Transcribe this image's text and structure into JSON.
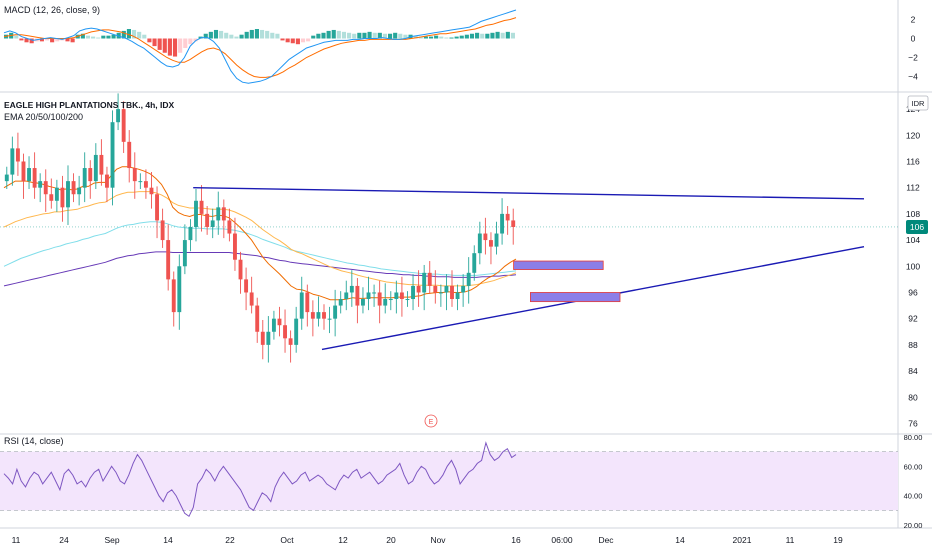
{
  "chart_data": [
    {
      "type": "histogram",
      "title": "MACD (12, 26, close, 9)",
      "y_ticks": [
        "2",
        "0",
        "−2",
        "−4"
      ],
      "y_tick_values": [
        2,
        0,
        -2,
        -4
      ],
      "ylim": [
        -5,
        3
      ],
      "histogram": [
        0.4,
        0.6,
        0.3,
        -0.2,
        -0.4,
        -0.5,
        -0.3,
        -0.3,
        -0.2,
        -0.4,
        -0.3,
        -0.2,
        -0.3,
        -0.4,
        0.4,
        0.5,
        0.3,
        0.2,
        0.1,
        0.3,
        0.3,
        0.4,
        0.6,
        0.8,
        1.0,
        0.9,
        0.7,
        0.4,
        -0.4,
        -0.8,
        -1.2,
        -1.5,
        -1.8,
        -1.9,
        -1.5,
        -1.0,
        -0.6,
        -0.3,
        0.2,
        0.5,
        0.7,
        0.9,
        0.8,
        0.6,
        0.4,
        0.2,
        0.4,
        0.7,
        0.9,
        1.0,
        0.9,
        0.8,
        0.6,
        0.5,
        -0.2,
        -0.4,
        -0.5,
        -0.6,
        -0.4,
        -0.3,
        0.3,
        0.5,
        0.6,
        0.8,
        0.9,
        0.8,
        0.7,
        0.6,
        0.5,
        0.6,
        0.6,
        0.7,
        0.6,
        0.6,
        0.5,
        0.5,
        0.6,
        0.5,
        0.4,
        0.4,
        0.3,
        0.2,
        0.2,
        0.2,
        0.3,
        0.2,
        0.1,
        0.1,
        0.2,
        0.3,
        0.4,
        0.5,
        0.6,
        0.5,
        0.5,
        0.6,
        0.7,
        0.6,
        0.7,
        0.6
      ],
      "macd_line": [
        0.6,
        0.8,
        0.6,
        0.2,
        0.0,
        -0.2,
        -0.1,
        0.0,
        0.1,
        0.0,
        -0.1,
        0.1,
        0.3,
        0.8,
        1.0,
        1.1,
        1.0,
        0.8,
        0.6,
        0.4,
        0.2,
        0.0,
        -0.3,
        -0.7,
        -1.0,
        -1.5,
        -2.0,
        -2.5,
        -2.9,
        -3.0,
        -2.8,
        -2.0,
        -0.8,
        -0.2,
        0.1,
        0.1,
        -0.3,
        -1.0,
        -2.2,
        -3.4,
        -4.2,
        -4.6,
        -4.7,
        -4.6,
        -4.5,
        -4.3,
        -4.0,
        -3.4,
        -2.8,
        -2.2,
        -1.8,
        -1.4,
        -1.0,
        -0.8,
        -0.6,
        -0.4,
        -0.3,
        -0.2,
        -0.2,
        -0.2,
        -0.1,
        -0.1,
        0.0,
        0.0,
        0.0,
        0.1,
        0.0,
        -0.1,
        -0.1,
        0.0,
        0.2,
        0.3,
        0.4,
        0.5,
        0.6,
        0.7,
        0.8,
        0.9,
        1.0,
        1.1,
        1.2,
        1.5,
        1.8,
        2.0,
        2.2,
        2.4,
        2.6,
        2.8,
        3.0
      ],
      "signal_line": [
        0.2,
        0.3,
        0.4,
        0.4,
        0.3,
        0.2,
        0.1,
        0.0,
        0.0,
        0.0,
        0.0,
        0.0,
        0.1,
        0.3,
        0.5,
        0.7,
        0.8,
        0.9,
        0.9,
        0.8,
        0.7,
        0.5,
        0.3,
        0.0,
        -0.4,
        -0.8,
        -1.2,
        -1.6,
        -2.0,
        -2.3,
        -2.5,
        -2.5,
        -2.2,
        -1.8,
        -1.4,
        -1.1,
        -1.0,
        -1.2,
        -1.6,
        -2.2,
        -2.8,
        -3.3,
        -3.7,
        -4.0,
        -4.1,
        -4.1,
        -4.0,
        -3.8,
        -3.5,
        -3.1,
        -2.8,
        -2.4,
        -2.0,
        -1.7,
        -1.4,
        -1.1,
        -0.9,
        -0.7,
        -0.5,
        -0.4,
        -0.3,
        -0.2,
        -0.2,
        -0.1,
        -0.1,
        -0.1,
        -0.1,
        -0.1,
        -0.1,
        -0.1,
        0.0,
        0.1,
        0.2,
        0.3,
        0.4,
        0.5,
        0.5,
        0.6,
        0.7,
        0.8,
        0.9,
        1.0,
        1.2,
        1.4,
        1.5,
        1.7,
        1.9,
        2.0,
        2.2
      ],
      "colors": {
        "positive": "#26a69a",
        "positive_light": "#b2dfdb",
        "negative": "#ef5350",
        "negative_light": "#ffcdd2",
        "macd": "#2196f3",
        "signal": "#ff6d00"
      }
    },
    {
      "type": "candlestick",
      "title": "EAGLE HIGH PLANTATIONS TBK., 4h, IDX",
      "subtitle": "EMA 20/50/100/200",
      "currency": "IDR",
      "last_price": "106",
      "last_price_value": 106,
      "y_ticks": [
        "124",
        "120",
        "116",
        "112",
        "108",
        "104",
        "100",
        "96",
        "92",
        "88",
        "84",
        "80",
        "76"
      ],
      "y_tick_values": [
        124,
        120,
        116,
        112,
        108,
        104,
        100,
        96,
        92,
        88,
        84,
        80,
        76
      ],
      "ylim": [
        75,
        126
      ],
      "x_ticks": [
        "11",
        "24",
        "Sep",
        "14",
        "22",
        "Oct",
        "12",
        "20",
        "Nov",
        "16",
        "06:00",
        "Dec",
        "14",
        "2021",
        "11",
        "19"
      ],
      "candles_close": [
        114,
        118,
        116,
        113,
        115,
        112,
        113,
        111,
        110,
        112,
        109,
        113,
        111,
        112,
        115,
        113,
        117,
        114,
        112,
        122,
        124,
        119,
        115,
        113,
        113,
        112,
        111,
        107,
        104,
        98,
        93,
        100,
        104,
        106,
        110,
        108,
        106,
        107,
        109,
        107,
        105,
        101,
        98,
        96,
        94,
        90,
        88,
        90,
        92,
        91,
        89,
        88,
        92,
        96,
        93,
        92,
        93,
        92,
        92,
        94,
        95,
        96,
        97,
        94,
        95,
        96,
        96,
        94,
        95,
        95,
        96,
        95,
        95,
        97,
        96,
        99,
        97,
        96,
        96,
        97,
        95,
        96,
        97,
        99,
        102,
        105,
        104,
        103,
        105,
        108,
        107,
        106
      ],
      "ema20": [
        112,
        112.5,
        113,
        113,
        113,
        112.8,
        112.7,
        112.5,
        112.2,
        112,
        111.7,
        111.8,
        111.7,
        111.8,
        112.2,
        112.2,
        112.7,
        112.8,
        112.8,
        113.8,
        114.8,
        115.2,
        115.2,
        115,
        114.8,
        114.5,
        114.1,
        113.4,
        112.5,
        111,
        109,
        108.2,
        107.8,
        107.6,
        107.9,
        107.9,
        107.7,
        107.6,
        107.8,
        107.7,
        107.4,
        106.7,
        105.9,
        105,
        104,
        102.7,
        101.4,
        100.4,
        99.6,
        98.8,
        97.9,
        97,
        96.5,
        96.4,
        96.1,
        95.7,
        95.5,
        95.2,
        94.9,
        94.9,
        94.9,
        95,
        95.2,
        95.1,
        95.1,
        95.2,
        95.2,
        95.2,
        95.2,
        95.2,
        95.3,
        95.3,
        95.3,
        95.4,
        95.5,
        95.8,
        95.9,
        96,
        96,
        96.1,
        96,
        96,
        96.1,
        96.4,
        96.9,
        97.6,
        98.2,
        98.6,
        99.2,
        100,
        100.6,
        101.1
      ],
      "ema50": [
        106,
        106.4,
        106.8,
        107.1,
        107.4,
        107.6,
        107.8,
        108,
        108.1,
        108.3,
        108.3,
        108.5,
        108.6,
        108.7,
        109,
        109.2,
        109.5,
        109.7,
        109.8,
        110.3,
        110.8,
        111.1,
        111.3,
        111.3,
        111.4,
        111.4,
        111.4,
        111.2,
        110.9,
        110.4,
        109.7,
        109.3,
        109.1,
        108.9,
        108.9,
        108.9,
        108.8,
        108.7,
        108.7,
        108.7,
        108.6,
        108.3,
        107.9,
        107.5,
        107,
        106.3,
        105.6,
        105,
        104.4,
        103.9,
        103.3,
        102.6,
        102.2,
        101.9,
        101.5,
        101.1,
        100.7,
        100.3,
        99.9,
        99.6,
        99.3,
        99.1,
        98.9,
        98.6,
        98.4,
        98.2,
        98,
        97.8,
        97.6,
        97.5,
        97.4,
        97.3,
        97.2,
        97.2,
        97.1,
        97.1,
        97.1,
        97.1,
        97,
        97,
        97,
        97,
        97,
        97.1,
        97.2,
        97.4,
        97.6,
        97.8,
        98.1,
        98.4,
        98.7,
        99
      ],
      "ema100": [
        100,
        100.4,
        100.8,
        101.2,
        101.5,
        101.8,
        102.1,
        102.4,
        102.6,
        102.9,
        103.1,
        103.4,
        103.6,
        103.8,
        104.1,
        104.3,
        104.6,
        104.8,
        105,
        105.4,
        105.8,
        106.1,
        106.3,
        106.4,
        106.6,
        106.7,
        106.8,
        106.8,
        106.7,
        106.5,
        106.2,
        106,
        105.9,
        105.8,
        105.8,
        105.8,
        105.7,
        105.7,
        105.7,
        105.7,
        105.6,
        105.5,
        105.3,
        105.1,
        104.8,
        104.5,
        104.1,
        103.8,
        103.5,
        103.2,
        102.9,
        102.5,
        102.3,
        102.1,
        101.9,
        101.7,
        101.5,
        101.3,
        101.1,
        100.9,
        100.7,
        100.5,
        100.4,
        100.2,
        100.1,
        99.9,
        99.8,
        99.6,
        99.5,
        99.4,
        99.3,
        99.2,
        99.1,
        99,
        98.9,
        98.9,
        98.8,
        98.8,
        98.7,
        98.7,
        98.6,
        98.6,
        98.6,
        98.6,
        98.6,
        98.7,
        98.8,
        98.9,
        99,
        99.1,
        99.2,
        99.3
      ],
      "ema200": [
        97,
        97.2,
        97.4,
        97.6,
        97.8,
        98,
        98.2,
        98.4,
        98.6,
        98.8,
        99,
        99.2,
        99.4,
        99.6,
        99.8,
        100,
        100.2,
        100.4,
        100.6,
        100.9,
        101.2,
        101.4,
        101.6,
        101.7,
        101.9,
        102,
        102.1,
        102.2,
        102.2,
        102.2,
        102.1,
        102.1,
        102.1,
        102.1,
        102.1,
        102.1,
        102.1,
        102.1,
        102.1,
        102.1,
        102.1,
        102,
        101.9,
        101.8,
        101.7,
        101.6,
        101.4,
        101.3,
        101.1,
        100.9,
        100.8,
        100.6,
        100.5,
        100.4,
        100.3,
        100.2,
        100.1,
        100,
        99.9,
        99.8,
        99.7,
        99.6,
        99.5,
        99.4,
        99.3,
        99.2,
        99.1,
        99,
        98.9,
        98.9,
        98.8,
        98.7,
        98.7,
        98.6,
        98.6,
        98.5,
        98.5,
        98.4,
        98.4,
        98.4,
        98.3,
        98.3,
        98.3,
        98.3,
        98.3,
        98.4,
        98.4,
        98.5,
        98.5,
        98.6,
        98.6,
        98.7
      ],
      "trendlines": [
        {
          "name": "resistance",
          "from": [
            22,
            112
          ],
          "to": [
            150,
            110.3
          ]
        },
        {
          "name": "support",
          "from": [
            45,
            87.3
          ],
          "to": [
            150,
            103
          ]
        }
      ],
      "zones": [
        {
          "name": "zone-upper",
          "y": [
            99.5,
            100.8
          ],
          "x": [
            91,
            107
          ]
        },
        {
          "name": "zone-lower",
          "y": [
            94.6,
            96
          ],
          "x": [
            94,
            110
          ]
        }
      ],
      "event_marker": "E",
      "colors": {
        "up": "#26a69a",
        "down": "#ef5350",
        "ema20": "#ef6c00",
        "ema50": "#ffb74d",
        "ema100": "#80deea",
        "ema200": "#673ab7",
        "trendline": "#1a1ab4",
        "zone_fill": "#8c7ee8",
        "zone_border": "#e53935",
        "price_badge": "#00897b"
      }
    },
    {
      "type": "line",
      "title": "RSI (14, close)",
      "y_ticks": [
        "80.00",
        "60.00",
        "40.00",
        "20.00"
      ],
      "y_tick_values": [
        80,
        60,
        40,
        20
      ],
      "ylim": [
        18,
        82
      ],
      "bands": [
        70,
        30
      ],
      "values": [
        55,
        52,
        48,
        58,
        50,
        46,
        52,
        56,
        54,
        48,
        52,
        56,
        50,
        44,
        55,
        58,
        54,
        48,
        50,
        46,
        52,
        56,
        58,
        50,
        55,
        60,
        56,
        50,
        48,
        54,
        62,
        68,
        64,
        58,
        52,
        46,
        40,
        36,
        42,
        44,
        40,
        34,
        28,
        26,
        32,
        48,
        52,
        58,
        55,
        50,
        56,
        60,
        56,
        52,
        48,
        44,
        38,
        32,
        30,
        36,
        42,
        40,
        36,
        46,
        52,
        56,
        52,
        48,
        50,
        54,
        56,
        50,
        52,
        54,
        52,
        48,
        46,
        44,
        50,
        54,
        52,
        56,
        58,
        52,
        54,
        56,
        52,
        48,
        50,
        54,
        56,
        58,
        62,
        54,
        48,
        50,
        56,
        60,
        58,
        52,
        48,
        50,
        54,
        60,
        64,
        58,
        48,
        52,
        56,
        58,
        62,
        64,
        76,
        68,
        64,
        66,
        70,
        72,
        66,
        68
      ],
      "colors": {
        "line": "#7e57c2",
        "fill": "#f3e5fc"
      }
    }
  ]
}
